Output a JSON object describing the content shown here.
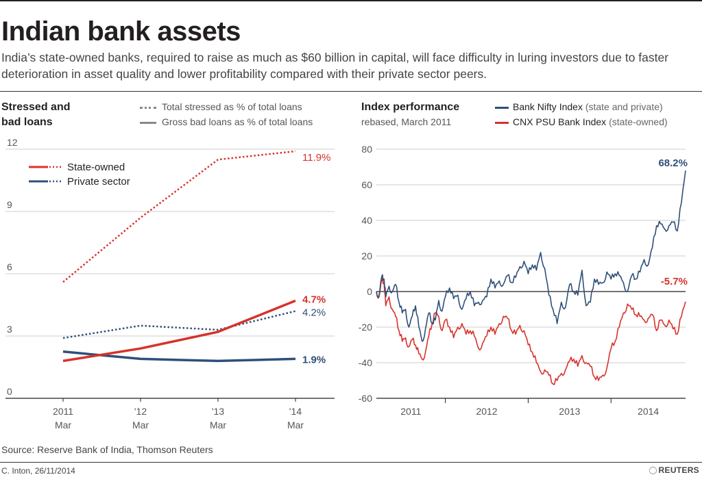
{
  "header": {
    "title": "Indian bank assets",
    "subtitle": "India’s state-owned banks, required to raise as much as $60 billion in capital, will face difficulty in luring investors due to faster deterioration in asset quality and lower profitability compared with their private sector peers."
  },
  "left_panel": {
    "title_line1": "Stressed and",
    "title_line2": "bad loans",
    "legend_dotted": "Total stressed as % of total loans",
    "legend_solid": "Gross bad loans as % of total loans",
    "series_state": "State-owned",
    "series_private": "Private sector"
  },
  "right_panel": {
    "title": "Index performance",
    "subtitle": "rebased, March 2011",
    "legend_nifty": "Bank Nifty Index",
    "legend_nifty_paren": "(state and private)",
    "legend_psu": "CNX PSU Bank Index",
    "legend_psu_paren": "(state-owned)"
  },
  "footer": {
    "source": "Source: Reserve Bank of India, Thomson Reuters",
    "credit": "C. Inton, 26/11/2014",
    "brand": "REUTERS"
  },
  "colors": {
    "state": "#d7322b",
    "private": "#2e4f79",
    "grid": "#cccccc",
    "axis": "#231f20"
  },
  "chart_data": [
    {
      "type": "line",
      "title": "Stressed and bad loans",
      "xlabel": "",
      "ylabel": "",
      "categories": [
        "2011 Mar",
        "'12 Mar",
        "'13 Mar",
        "'14 Mar"
      ],
      "x_tick_top": [
        "2011",
        "'12",
        "'13",
        "'14"
      ],
      "x_tick_bottom": [
        "Mar",
        "Mar",
        "Mar",
        "Mar"
      ],
      "ylim": [
        0,
        12
      ],
      "yticks": [
        0,
        3,
        6,
        9,
        12
      ],
      "grid": true,
      "series": [
        {
          "name": "State-owned total stressed",
          "style": "dotted",
          "color": "#d7322b",
          "values": [
            5.6,
            8.7,
            11.5,
            11.9
          ],
          "end_label": "11.9%"
        },
        {
          "name": "State-owned gross bad loans",
          "style": "solid",
          "color": "#d7322b",
          "values": [
            1.8,
            2.4,
            3.2,
            4.7
          ],
          "end_label": "4.7%"
        },
        {
          "name": "Private sector total stressed",
          "style": "dotted",
          "color": "#2e4f79",
          "values": [
            2.9,
            3.5,
            3.3,
            4.2
          ],
          "end_label": "4.2%"
        },
        {
          "name": "Private sector gross bad loans",
          "style": "solid",
          "color": "#2e4f79",
          "values": [
            2.25,
            1.9,
            1.8,
            1.9
          ],
          "end_label": "1.9%"
        }
      ]
    },
    {
      "type": "line",
      "title": "Index performance",
      "subtitle": "rebased, March 2011",
      "xlabel": "",
      "ylabel": "",
      "xlim": [
        2011.167,
        2014.9
      ],
      "xticks": [
        2011,
        2012,
        2013,
        2014
      ],
      "xtick_labels": [
        "2011",
        "2012",
        "2013",
        "2014"
      ],
      "ylim": [
        -60,
        80
      ],
      "yticks": [
        -60,
        -40,
        -20,
        0,
        20,
        40,
        60,
        80
      ],
      "grid": true,
      "series": [
        {
          "name": "Bank Nifty Index (state and private)",
          "color": "#2e4f79",
          "end_label": "68.2%",
          "x": [
            2011.167,
            2011.2,
            2011.23,
            2011.26,
            2011.28,
            2011.32,
            2011.36,
            2011.4,
            2011.44,
            2011.48,
            2011.52,
            2011.56,
            2011.6,
            2011.64,
            2011.68,
            2011.72,
            2011.76,
            2011.8,
            2011.84,
            2011.88,
            2011.92,
            2011.96,
            2012.0,
            2012.05,
            2012.1,
            2012.15,
            2012.2,
            2012.25,
            2012.3,
            2012.35,
            2012.4,
            2012.45,
            2012.5,
            2012.55,
            2012.6,
            2012.65,
            2012.7,
            2012.75,
            2012.8,
            2012.85,
            2012.9,
            2012.95,
            2013.0,
            2013.05,
            2013.1,
            2013.15,
            2013.2,
            2013.25,
            2013.3,
            2013.35,
            2013.4,
            2013.45,
            2013.5,
            2013.55,
            2013.6,
            2013.65,
            2013.7,
            2013.75,
            2013.8,
            2013.85,
            2013.9,
            2013.95,
            2014.0,
            2014.05,
            2014.1,
            2014.15,
            2014.2,
            2014.25,
            2014.3,
            2014.35,
            2014.4,
            2014.45,
            2014.5,
            2014.55,
            2014.6,
            2014.65,
            2014.7,
            2014.75,
            2014.8,
            2014.85,
            2014.9
          ],
          "values": [
            0,
            -2,
            8,
            7,
            -3,
            3,
            0,
            4,
            -6,
            -12,
            -10,
            -20,
            -14,
            -8,
            -20,
            -28,
            -21,
            -12,
            -18,
            -16,
            -5,
            -11,
            -3,
            2,
            -4,
            -2,
            -10,
            -4,
            0,
            -8,
            -6,
            -5,
            -3,
            7,
            2,
            6,
            4,
            9,
            5,
            8,
            14,
            17,
            10,
            15,
            12,
            22,
            13,
            -2,
            -10,
            -18,
            -6,
            -9,
            4,
            0,
            -2,
            12,
            -8,
            -6,
            7,
            4,
            5,
            11,
            7,
            10,
            9,
            5,
            0,
            9,
            7,
            11,
            18,
            15,
            25,
            37,
            38,
            35,
            37,
            39,
            34,
            50,
            68
          ]
        },
        {
          "name": "CNX PSU Bank Index (state-owned)",
          "color": "#d7322b",
          "end_label": "-5.7%",
          "x": [
            2011.167,
            2011.2,
            2011.23,
            2011.26,
            2011.28,
            2011.32,
            2011.36,
            2011.4,
            2011.44,
            2011.48,
            2011.52,
            2011.56,
            2011.6,
            2011.64,
            2011.68,
            2011.72,
            2011.76,
            2011.8,
            2011.84,
            2011.88,
            2011.92,
            2011.96,
            2012.0,
            2012.05,
            2012.1,
            2012.15,
            2012.2,
            2012.25,
            2012.3,
            2012.35,
            2012.4,
            2012.45,
            2012.5,
            2012.55,
            2012.6,
            2012.65,
            2012.7,
            2012.75,
            2012.8,
            2012.85,
            2012.9,
            2012.95,
            2013.0,
            2013.05,
            2013.1,
            2013.15,
            2013.2,
            2013.25,
            2013.3,
            2013.35,
            2013.4,
            2013.45,
            2013.5,
            2013.55,
            2013.6,
            2013.65,
            2013.7,
            2013.75,
            2013.8,
            2013.85,
            2013.9,
            2013.95,
            2014.0,
            2014.05,
            2014.1,
            2014.15,
            2014.2,
            2014.25,
            2014.3,
            2014.35,
            2014.4,
            2014.45,
            2014.5,
            2014.55,
            2014.6,
            2014.65,
            2014.7,
            2014.75,
            2014.8,
            2014.85,
            2014.9
          ],
          "values": [
            0,
            -3,
            6,
            5,
            -8,
            -3,
            -10,
            -14,
            -22,
            -28,
            -26,
            -31,
            -27,
            -30,
            -35,
            -38,
            -34,
            -25,
            -18,
            -12,
            -14,
            -22,
            -16,
            -20,
            -26,
            -20,
            -18,
            -24,
            -22,
            -25,
            -32,
            -29,
            -25,
            -20,
            -24,
            -18,
            -14,
            -15,
            -22,
            -24,
            -19,
            -22,
            -30,
            -34,
            -40,
            -45,
            -44,
            -47,
            -52,
            -50,
            -46,
            -44,
            -39,
            -38,
            -42,
            -36,
            -40,
            -42,
            -48,
            -50,
            -47,
            -43,
            -32,
            -28,
            -20,
            -12,
            -7,
            -10,
            -13,
            -14,
            -16,
            -15,
            -13,
            -22,
            -16,
            -19,
            -16,
            -21,
            -24,
            -14,
            -5.7
          ]
        }
      ]
    }
  ]
}
